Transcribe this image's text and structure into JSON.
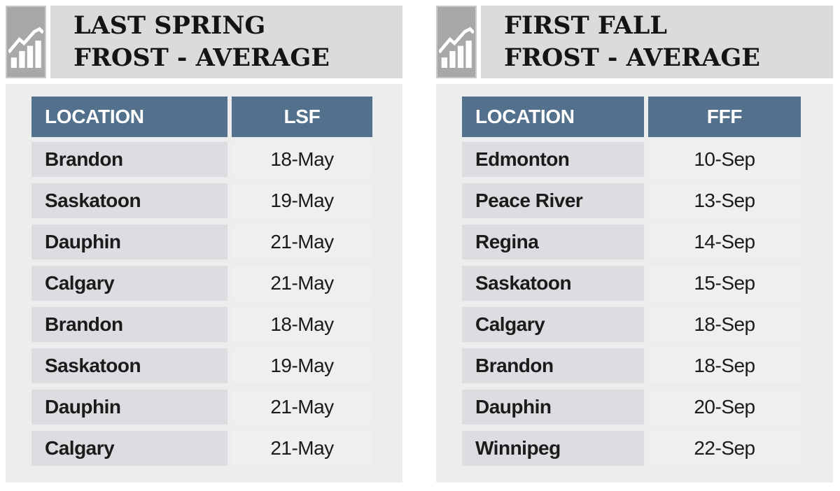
{
  "colors": {
    "header_blue": "#53718c",
    "location_cell_bg": "#dcdde1",
    "value_cell_bg": "#efefef",
    "panel_bg": "#eceded",
    "title_bar_bg": "#dadbda",
    "icon_box_bg": "#a7a8a7",
    "title_text": "#141414",
    "header_text": "#ffffff"
  },
  "icons": [
    {
      "name": "bar-chart-trend-icon",
      "description": "white ascending bar chart with rising zigzag trend line on gray box"
    }
  ],
  "chart_data": [
    {
      "type": "table",
      "title_line1": "LAST SPRING",
      "title_line2": "FROST - AVERAGE",
      "title": "LAST SPRING FROST - AVERAGE",
      "columns": [
        "LOCATION",
        "LSF"
      ],
      "rows": [
        [
          "Brandon",
          "18-May"
        ],
        [
          "Saskatoon",
          "19-May"
        ],
        [
          "Dauphin",
          "21-May"
        ],
        [
          "Calgary",
          "21-May"
        ],
        [
          "Brandon",
          "18-May"
        ],
        [
          "Saskatoon",
          "19-May"
        ],
        [
          "Dauphin",
          "21-May"
        ],
        [
          "Calgary",
          "21-May"
        ]
      ]
    },
    {
      "type": "table",
      "title_line1": "FIRST FALL",
      "title_line2": "FROST - AVERAGE",
      "title": "FIRST FALL FROST - AVERAGE",
      "columns": [
        "LOCATION",
        "FFF"
      ],
      "rows": [
        [
          "Edmonton",
          "10-Sep"
        ],
        [
          "Peace River",
          "13-Sep"
        ],
        [
          "Regina",
          "14-Sep"
        ],
        [
          "Saskatoon",
          "15-Sep"
        ],
        [
          "Calgary",
          "18-Sep"
        ],
        [
          "Brandon",
          "18-Sep"
        ],
        [
          "Dauphin",
          "20-Sep"
        ],
        [
          "Winnipeg",
          "22-Sep"
        ]
      ]
    }
  ]
}
